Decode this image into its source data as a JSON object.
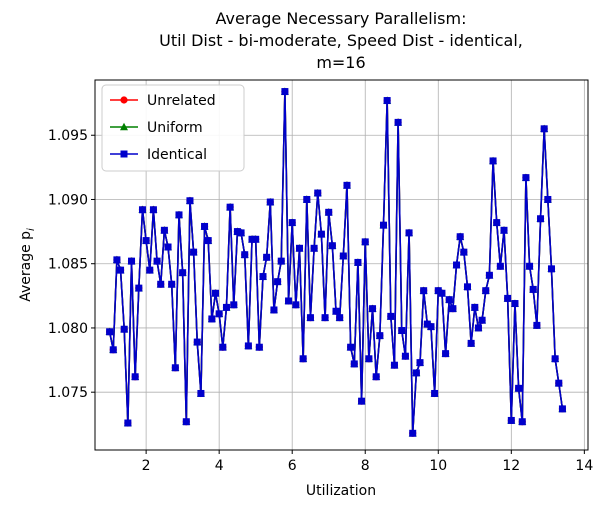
{
  "chart_data": {
    "type": "line",
    "title_lines": [
      "Average Necessary Parallelism:",
      "Util Dist - bi-moderate, Speed Dist - identical,",
      "m=16"
    ],
    "xlabel": "Utilization",
    "ylabel": "Average p",
    "ylabel_subscript": "i",
    "xlim": [
      0.6,
      14.1
    ],
    "ylim": [
      1.0705,
      1.0993
    ],
    "xticks": [
      2,
      4,
      6,
      8,
      10,
      12,
      14
    ],
    "yticks": [
      1.075,
      1.08,
      1.085,
      1.09,
      1.095
    ],
    "xtick_labels": [
      "2",
      "4",
      "6",
      "8",
      "10",
      "12",
      "14"
    ],
    "ytick_labels": [
      "1.075",
      "1.080",
      "1.085",
      "1.090",
      "1.095"
    ],
    "grid": true,
    "legend_position": "top-left",
    "x": [
      1.0,
      1.1,
      1.2,
      1.3,
      1.4,
      1.5,
      1.6,
      1.7,
      1.8,
      1.9,
      2.0,
      2.1,
      2.2,
      2.3,
      2.4,
      2.5,
      2.6,
      2.7,
      2.8,
      2.9,
      3.0,
      3.1,
      3.2,
      3.3,
      3.4,
      3.5,
      3.6,
      3.7,
      3.8,
      3.9,
      4.0,
      4.1,
      4.2,
      4.3,
      4.4,
      4.5,
      4.6,
      4.7,
      4.8,
      4.9,
      5.0,
      5.1,
      5.2,
      5.3,
      5.4,
      5.5,
      5.6,
      5.7,
      5.8,
      5.9,
      6.0,
      6.1,
      6.2,
      6.3,
      6.4,
      6.5,
      6.6,
      6.7,
      6.8,
      6.9,
      7.0,
      7.1,
      7.2,
      7.3,
      7.4,
      7.5,
      7.6,
      7.7,
      7.8,
      7.9,
      8.0,
      8.1,
      8.2,
      8.3,
      8.4,
      8.5,
      8.6,
      8.7,
      8.8,
      8.9,
      9.0,
      9.1,
      9.2,
      9.3,
      9.4,
      9.5,
      9.6,
      9.7,
      9.8,
      9.9,
      10.0,
      10.1,
      10.2,
      10.3,
      10.4,
      10.5,
      10.6,
      10.7,
      10.8,
      10.9,
      11.0,
      11.1,
      11.2,
      11.3,
      11.4,
      11.5,
      11.6,
      11.7,
      11.8,
      11.9,
      12.0,
      12.1,
      12.2,
      12.3,
      12.4,
      12.5,
      12.6,
      12.7,
      12.8,
      12.9,
      13.0,
      13.1,
      13.2,
      13.3,
      13.4
    ],
    "series": [
      {
        "name": "Unrelated",
        "color": "#ff0000",
        "marker": "circle",
        "values": [
          1.0797,
          1.0783,
          1.0853,
          1.0845,
          1.0799,
          1.0726,
          1.0852,
          1.0762,
          1.0831,
          1.0892,
          1.0868,
          1.0845,
          1.0892,
          1.0852,
          1.0834,
          1.0876,
          1.0863,
          1.0834,
          1.0769,
          1.0888,
          1.0843,
          1.0727,
          1.0899,
          1.0859,
          1.0789,
          1.0749,
          1.0879,
          1.0868,
          1.0807,
          1.0827,
          1.0811,
          1.0785,
          1.0816,
          1.0894,
          1.0818,
          1.0875,
          1.0874,
          1.0857,
          1.0786,
          1.0869,
          1.0869,
          1.0785,
          1.084,
          1.0855,
          1.0898,
          1.0814,
          1.0836,
          1.0852,
          1.0984,
          1.0821,
          1.0882,
          1.0818,
          1.0862,
          1.0776,
          1.09,
          1.0808,
          1.0862,
          1.0905,
          1.0873,
          1.0808,
          1.089,
          1.0864,
          1.0813,
          1.0808,
          1.0856,
          1.0911,
          1.0785,
          1.0772,
          1.0851,
          1.0743,
          1.0867,
          1.0776,
          1.0815,
          1.0762,
          1.0794,
          1.088,
          1.0977,
          1.0809,
          1.0771,
          1.096,
          1.0798,
          1.0778,
          1.0874,
          1.0718,
          1.0765,
          1.0773,
          1.0829,
          1.0803,
          1.0801,
          1.0749,
          1.0829,
          1.0827,
          1.078,
          1.0822,
          1.0815,
          1.0849,
          1.0871,
          1.0859,
          1.0832,
          1.0788,
          1.0816,
          1.08,
          1.0806,
          1.0829,
          1.0841,
          1.093,
          1.0882,
          1.0848,
          1.0876,
          1.0823,
          1.0728,
          1.0819,
          1.0753,
          1.0727,
          1.0917,
          1.0848,
          1.083,
          1.0802,
          1.0885,
          1.0955,
          1.09,
          1.0846,
          1.0776,
          1.0757,
          1.0737
        ]
      },
      {
        "name": "Uniform",
        "color": "#008000",
        "marker": "triangle",
        "values": [
          1.0797,
          1.0783,
          1.0853,
          1.0845,
          1.0799,
          1.0726,
          1.0852,
          1.0762,
          1.0831,
          1.0892,
          1.0868,
          1.0845,
          1.0892,
          1.0852,
          1.0834,
          1.0876,
          1.0863,
          1.0834,
          1.0769,
          1.0888,
          1.0843,
          1.0727,
          1.0899,
          1.0859,
          1.0789,
          1.0749,
          1.0879,
          1.0868,
          1.0807,
          1.0827,
          1.0811,
          1.0785,
          1.0816,
          1.0894,
          1.0818,
          1.0875,
          1.0874,
          1.0857,
          1.0786,
          1.0869,
          1.0869,
          1.0785,
          1.084,
          1.0855,
          1.0898,
          1.0814,
          1.0836,
          1.0852,
          1.0984,
          1.0821,
          1.0882,
          1.0818,
          1.0862,
          1.0776,
          1.09,
          1.0808,
          1.0862,
          1.0905,
          1.0873,
          1.0808,
          1.089,
          1.0864,
          1.0813,
          1.0808,
          1.0856,
          1.0911,
          1.0785,
          1.0772,
          1.0851,
          1.0743,
          1.0867,
          1.0776,
          1.0815,
          1.0762,
          1.0794,
          1.088,
          1.0977,
          1.0809,
          1.0771,
          1.096,
          1.0798,
          1.0778,
          1.0874,
          1.0718,
          1.0765,
          1.0773,
          1.0829,
          1.0803,
          1.0801,
          1.0749,
          1.0829,
          1.0827,
          1.078,
          1.0822,
          1.0815,
          1.0849,
          1.0871,
          1.0859,
          1.0832,
          1.0788,
          1.0816,
          1.08,
          1.0806,
          1.0829,
          1.0841,
          1.093,
          1.0882,
          1.0848,
          1.0876,
          1.0823,
          1.0728,
          1.0819,
          1.0753,
          1.0727,
          1.0917,
          1.0848,
          1.083,
          1.0802,
          1.0885,
          1.0955,
          1.09,
          1.0846,
          1.0776,
          1.0757,
          1.0737
        ]
      },
      {
        "name": "Identical",
        "color": "#0000cc",
        "marker": "square",
        "values": [
          1.0797,
          1.0783,
          1.0853,
          1.0845,
          1.0799,
          1.0726,
          1.0852,
          1.0762,
          1.0831,
          1.0892,
          1.0868,
          1.0845,
          1.0892,
          1.0852,
          1.0834,
          1.0876,
          1.0863,
          1.0834,
          1.0769,
          1.0888,
          1.0843,
          1.0727,
          1.0899,
          1.0859,
          1.0789,
          1.0749,
          1.0879,
          1.0868,
          1.0807,
          1.0827,
          1.0811,
          1.0785,
          1.0816,
          1.0894,
          1.0818,
          1.0875,
          1.0874,
          1.0857,
          1.0786,
          1.0869,
          1.0869,
          1.0785,
          1.084,
          1.0855,
          1.0898,
          1.0814,
          1.0836,
          1.0852,
          1.0984,
          1.0821,
          1.0882,
          1.0818,
          1.0862,
          1.0776,
          1.09,
          1.0808,
          1.0862,
          1.0905,
          1.0873,
          1.0808,
          1.089,
          1.0864,
          1.0813,
          1.0808,
          1.0856,
          1.0911,
          1.0785,
          1.0772,
          1.0851,
          1.0743,
          1.0867,
          1.0776,
          1.0815,
          1.0762,
          1.0794,
          1.088,
          1.0977,
          1.0809,
          1.0771,
          1.096,
          1.0798,
          1.0778,
          1.0874,
          1.0718,
          1.0765,
          1.0773,
          1.0829,
          1.0803,
          1.0801,
          1.0749,
          1.0829,
          1.0827,
          1.078,
          1.0822,
          1.0815,
          1.0849,
          1.0871,
          1.0859,
          1.0832,
          1.0788,
          1.0816,
          1.08,
          1.0806,
          1.0829,
          1.0841,
          1.093,
          1.0882,
          1.0848,
          1.0876,
          1.0823,
          1.0728,
          1.0819,
          1.0753,
          1.0727,
          1.0917,
          1.0848,
          1.083,
          1.0802,
          1.0885,
          1.0955,
          1.09,
          1.0846,
          1.0776,
          1.0757,
          1.0737
        ]
      }
    ]
  }
}
